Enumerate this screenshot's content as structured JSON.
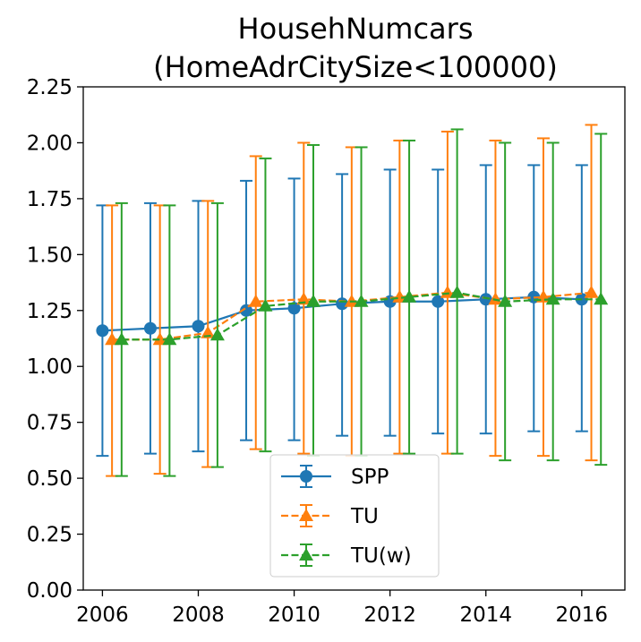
{
  "chart_data": {
    "type": "line",
    "title": [
      "HousehNumcars",
      "(HomeAdrCitySize<100000)"
    ],
    "xlabel": "",
    "ylabel": "",
    "xlim": [
      2005.6,
      2016.9
    ],
    "ylim": [
      0,
      2.25
    ],
    "xticks": [
      2006,
      2008,
      2010,
      2012,
      2014,
      2016
    ],
    "yticks": [
      "0.00",
      "0.25",
      "0.50",
      "0.75",
      "1.00",
      "1.25",
      "1.50",
      "1.75",
      "2.00",
      "2.25"
    ],
    "grid": false,
    "legend": {
      "placement": "lower-center"
    },
    "series": [
      {
        "name": "SPP",
        "color": "#1f77b4",
        "marker": "circle",
        "linestyle": "solid",
        "x": [
          2006,
          2007,
          2008,
          2009,
          2010,
          2011,
          2012,
          2013,
          2014,
          2015,
          2016
        ],
        "y": [
          1.16,
          1.17,
          1.18,
          1.25,
          1.26,
          1.28,
          1.29,
          1.29,
          1.3,
          1.31,
          1.3
        ],
        "lower": [
          0.6,
          0.61,
          0.62,
          0.67,
          0.67,
          0.69,
          0.69,
          0.7,
          0.7,
          0.71,
          0.71
        ],
        "upper": [
          1.72,
          1.73,
          1.74,
          1.83,
          1.84,
          1.86,
          1.88,
          1.88,
          1.9,
          1.9,
          1.9
        ]
      },
      {
        "name": "TU",
        "color": "#ff7f0e",
        "marker": "triangle",
        "linestyle": "dashed",
        "x": [
          2006.2,
          2007.2,
          2008.2,
          2009.2,
          2010.2,
          2011.2,
          2012.2,
          2013.2,
          2014.2,
          2015.2,
          2016.2
        ],
        "y": [
          1.12,
          1.12,
          1.15,
          1.29,
          1.3,
          1.29,
          1.31,
          1.33,
          1.3,
          1.31,
          1.33
        ],
        "lower": [
          0.51,
          0.52,
          0.55,
          0.63,
          0.61,
          0.6,
          0.61,
          0.61,
          0.6,
          0.6,
          0.58
        ],
        "upper": [
          1.72,
          1.72,
          1.74,
          1.94,
          2.0,
          1.98,
          2.01,
          2.05,
          2.01,
          2.02,
          2.08
        ]
      },
      {
        "name": "TU(w)",
        "color": "#2ca02c",
        "marker": "triangle",
        "linestyle": "dashed",
        "x": [
          2006.4,
          2007.4,
          2008.4,
          2009.4,
          2010.4,
          2011.4,
          2012.4,
          2013.4,
          2014.4,
          2015.4,
          2016.4
        ],
        "y": [
          1.12,
          1.12,
          1.14,
          1.27,
          1.29,
          1.29,
          1.31,
          1.33,
          1.29,
          1.3,
          1.3
        ],
        "lower": [
          0.51,
          0.51,
          0.55,
          0.62,
          0.6,
          0.6,
          0.61,
          0.61,
          0.58,
          0.58,
          0.56
        ],
        "upper": [
          1.73,
          1.72,
          1.73,
          1.93,
          1.99,
          1.98,
          2.01,
          2.06,
          2.0,
          2.0,
          2.04
        ]
      }
    ]
  }
}
